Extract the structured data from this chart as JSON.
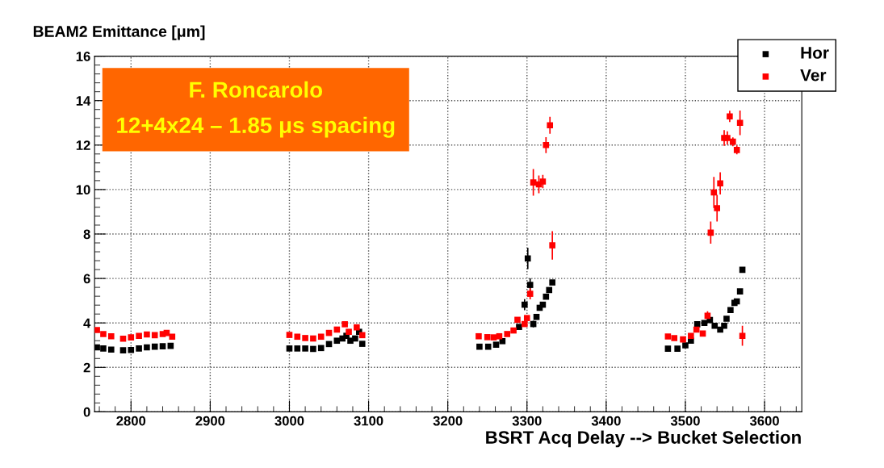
{
  "chart_data": {
    "type": "scatter",
    "title": "BEAM2 Emittance [μm]",
    "xlabel": "BSRT Acq Delay --> Bucket Selection",
    "annotations": [
      "F. Roncarolo",
      "12+4x24 – 1.85 μs spacing"
    ],
    "xlim": [
      2754,
      3647
    ],
    "ylim": [
      0,
      16
    ],
    "xticks": [
      2800,
      2900,
      3000,
      3100,
      3200,
      3300,
      3400,
      3500,
      3600
    ],
    "yticks": [
      0,
      2,
      4,
      6,
      8,
      10,
      12,
      14,
      16
    ],
    "grid": true,
    "legend": "top right",
    "marker": "square",
    "series": [
      {
        "name": "Hor",
        "color": "#000000",
        "x": [
          2757,
          2765,
          2775,
          2790,
          2800,
          2810,
          2820,
          2830,
          2840,
          2850,
          3000,
          3010,
          3020,
          3030,
          3040,
          3050,
          3060,
          3067,
          3072,
          3077,
          3083,
          3088,
          3092,
          3240,
          3251,
          3261,
          3269,
          3280,
          3290,
          3297,
          3301,
          3304,
          3308,
          3312,
          3316,
          3320,
          3324,
          3328,
          3332,
          3478,
          3490,
          3500,
          3507,
          3515,
          3524,
          3531,
          3537,
          3544,
          3549,
          3552,
          3557,
          3562,
          3565,
          3569,
          3572
        ],
        "values": [
          2.9,
          2.85,
          2.8,
          2.77,
          2.78,
          2.85,
          2.9,
          2.93,
          2.95,
          2.97,
          2.85,
          2.85,
          2.85,
          2.83,
          2.87,
          3.05,
          3.2,
          3.3,
          3.42,
          3.2,
          3.3,
          3.6,
          3.06,
          2.93,
          2.93,
          3.02,
          3.18,
          null,
          3.82,
          4.82,
          6.9,
          5.71,
          3.95,
          4.27,
          4.68,
          4.82,
          5.18,
          5.48,
          5.82,
          2.84,
          2.84,
          2.99,
          3.2,
          3.94,
          4.0,
          4.13,
          3.87,
          3.7,
          3.87,
          4.19,
          4.58,
          4.9,
          4.97,
          5.42,
          6.39
        ],
        "errors": [
          null,
          null,
          null,
          null,
          null,
          null,
          null,
          null,
          null,
          null,
          null,
          null,
          null,
          null,
          null,
          null,
          null,
          null,
          null,
          null,
          null,
          null,
          null,
          null,
          null,
          null,
          null,
          null,
          null,
          0.25,
          0.48,
          0.3,
          0.15,
          null,
          null,
          null,
          null,
          null,
          null,
          null,
          null,
          null,
          null,
          null,
          null,
          null,
          null,
          null,
          null,
          null,
          null,
          null,
          null,
          null,
          null
        ]
      },
      {
        "name": "Ver",
        "color": "#ff0000",
        "x": [
          2757,
          2765,
          2775,
          2790,
          2800,
          2810,
          2820,
          2830,
          2840,
          2845,
          2852,
          3000,
          3010,
          3020,
          3030,
          3040,
          3050,
          3060,
          3070,
          3075,
          3085,
          3092,
          3239,
          3250,
          3258,
          3265,
          3275,
          3283,
          3288,
          3297,
          3300,
          3304,
          3308,
          3312,
          3315,
          3320,
          3324,
          3329,
          3332,
          3478,
          3486,
          3497,
          3507,
          3514,
          3522,
          3528,
          3532,
          3536,
          3540,
          3544,
          3549,
          3553,
          3556,
          3560,
          3565,
          3569,
          3572
        ],
        "values": [
          3.68,
          3.5,
          3.4,
          3.29,
          3.35,
          3.42,
          3.48,
          3.45,
          3.5,
          3.55,
          3.38,
          3.46,
          3.38,
          3.32,
          3.3,
          3.38,
          3.55,
          3.7,
          3.94,
          3.6,
          3.8,
          3.45,
          3.4,
          3.36,
          3.35,
          3.4,
          3.5,
          3.66,
          4.14,
          3.95,
          4.22,
          5.31,
          10.32,
          null,
          10.23,
          10.36,
          12.0,
          12.89,
          7.49,
          3.39,
          3.32,
          3.26,
          3.42,
          3.7,
          3.52,
          4.32,
          8.06,
          9.87,
          9.16,
          10.28,
          12.32,
          12.32,
          13.29,
          12.15,
          11.78,
          13.0,
          3.42
        ],
        "errors": [
          null,
          null,
          null,
          null,
          null,
          null,
          null,
          null,
          null,
          null,
          null,
          null,
          null,
          null,
          null,
          null,
          null,
          null,
          null,
          null,
          null,
          null,
          null,
          null,
          null,
          null,
          null,
          null,
          null,
          null,
          null,
          0.25,
          0.6,
          null,
          0.4,
          0.3,
          0.36,
          0.38,
          0.64,
          null,
          null,
          null,
          null,
          null,
          null,
          0.2,
          0.5,
          0.7,
          0.6,
          0.5,
          0.35,
          0.3,
          0.25,
          0.2,
          0.2,
          0.55,
          0.45
        ]
      }
    ]
  }
}
